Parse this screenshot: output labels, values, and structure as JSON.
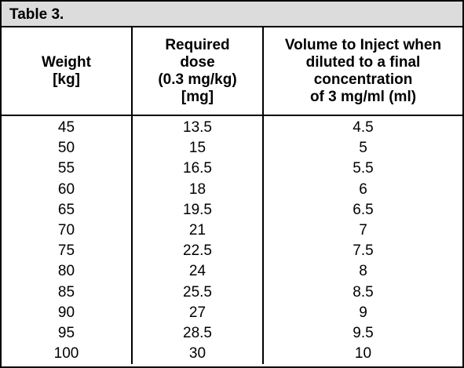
{
  "table": {
    "title": "Table 3.",
    "headers": [
      [
        "Weight",
        "[kg]"
      ],
      [
        "Required",
        "dose",
        "(0.3 mg/kg)",
        "[mg]"
      ],
      [
        "Volume to Inject when",
        "diluted to a final",
        "concentration",
        "of 3 mg/ml (ml)"
      ]
    ],
    "rows": [
      [
        "45",
        "13.5",
        "4.5"
      ],
      [
        "50",
        "15",
        "5"
      ],
      [
        "55",
        "16.5",
        "5.5"
      ],
      [
        "60",
        "18",
        "6"
      ],
      [
        "65",
        "19.5",
        "6.5"
      ],
      [
        "70",
        "21",
        "7"
      ],
      [
        "75",
        "22.5",
        "7.5"
      ],
      [
        "80",
        "24",
        "8"
      ],
      [
        "85",
        "25.5",
        "8.5"
      ],
      [
        "90",
        "27",
        "9"
      ],
      [
        "95",
        "28.5",
        "9.5"
      ],
      [
        "100",
        "30",
        "10"
      ]
    ]
  }
}
